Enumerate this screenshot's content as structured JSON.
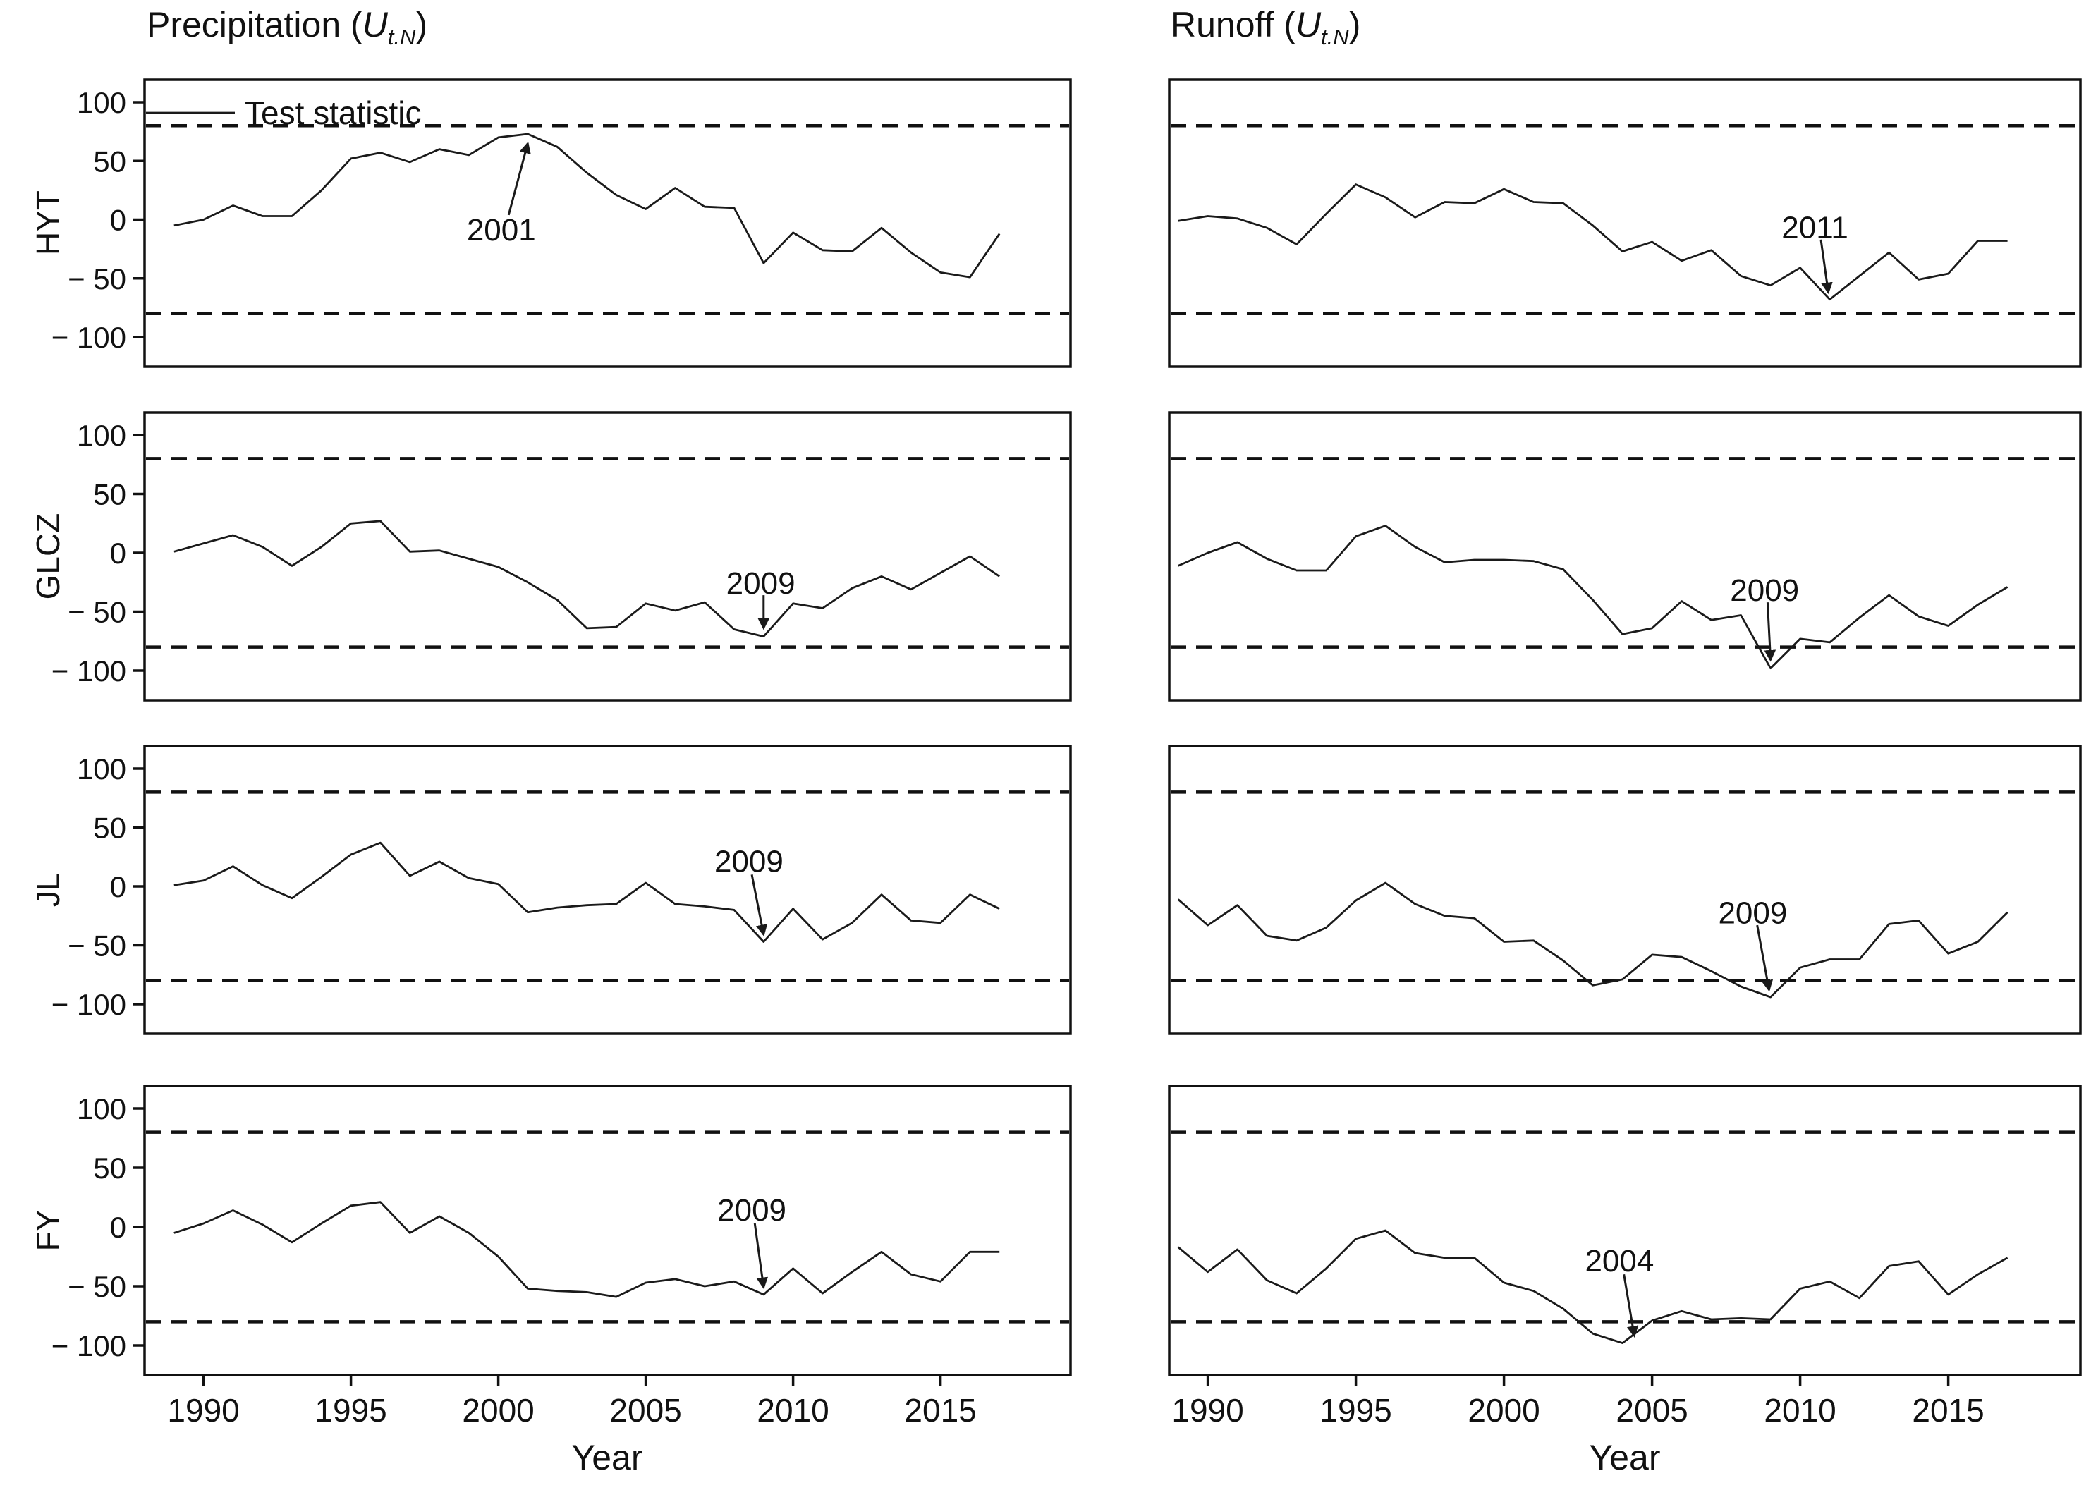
{
  "titles": {
    "left": {
      "prefix": "Precipitation (",
      "symbol": "U",
      "subscript": "t.N",
      "suffix": ")"
    },
    "right": {
      "prefix": "Runoff (",
      "symbol": "U",
      "subscript": "t.N",
      "suffix": ")"
    }
  },
  "row_labels": [
    "HYT",
    "GLCZ",
    "JL",
    "FY"
  ],
  "legend": {
    "label": "Test statistic",
    "panel_id": "hyt-precipitation"
  },
  "colors": {
    "line": "#1a1a1a",
    "bounds": "#111111",
    "frame": "#111111",
    "background": "#ffffff"
  },
  "chart_data": {
    "type": "line",
    "title_left": "Precipitation (U t.N)",
    "title_right": "Runoff (U t.N)",
    "xlabel": "Year",
    "ylabel_rows": [
      "HYT",
      "GLCZ",
      "JL",
      "FY"
    ],
    "x": [
      1989,
      1990,
      1991,
      1992,
      1993,
      1994,
      1995,
      1996,
      1997,
      1998,
      1999,
      2000,
      2001,
      2002,
      2003,
      2004,
      2005,
      2006,
      2007,
      2008,
      2009,
      2010,
      2011,
      2012,
      2013,
      2014,
      2015,
      2016,
      2017
    ],
    "xlim": [
      1988,
      2019.5
    ],
    "ylim": [
      -125,
      120
    ],
    "xticks": [
      1990,
      1995,
      2000,
      2005,
      2010,
      2015
    ],
    "xtick_labels": [
      "1990",
      "1995",
      "2000",
      "2005",
      "2010",
      "2015"
    ],
    "yticks": [
      100,
      50,
      0,
      -50,
      -100
    ],
    "ytick_labels": [
      "100",
      "50",
      "0",
      "− 50",
      "− 100"
    ],
    "significance_bounds": [
      80,
      -80
    ],
    "grid": false,
    "legend_entry": "Test statistic",
    "panels": [
      {
        "id": "hyt-precipitation",
        "station": "HYT",
        "variable": "Precipitation",
        "row": 0,
        "col": 0,
        "values": [
          -5,
          0,
          12,
          3,
          3,
          25,
          52,
          57,
          49,
          60,
          55,
          70,
          73,
          62,
          40,
          21,
          9,
          27,
          11,
          10,
          -37,
          -11,
          -26,
          -27,
          -7,
          -28,
          -45,
          -49,
          -12
        ],
        "annotation": {
          "text": "2001",
          "label_at": [
            2000.1,
            -8
          ],
          "arrow_from": [
            2000.35,
            4
          ],
          "arrow_to": [
            2001,
            65
          ]
        }
      },
      {
        "id": "hyt-runoff",
        "station": "HYT",
        "variable": "Runoff",
        "row": 0,
        "col": 1,
        "values": [
          -1,
          3,
          1,
          -7,
          -21,
          5,
          30,
          19,
          2,
          15,
          14,
          26,
          15,
          14,
          -5,
          -27,
          -19,
          -35,
          -26,
          -48,
          -56,
          -41,
          -68,
          -48,
          -28,
          -51,
          -46,
          -18,
          -18
        ],
        "annotation": {
          "text": "2011",
          "label_at": [
            2010.5,
            -6
          ],
          "arrow_from": [
            2010.7,
            -17
          ],
          "arrow_to": [
            2010.95,
            -62
          ]
        }
      },
      {
        "id": "glcz-precipitation",
        "station": "GLCZ",
        "variable": "Precipitation",
        "row": 1,
        "col": 0,
        "values": [
          1,
          8,
          15,
          5,
          -11,
          5,
          25,
          27,
          1,
          2,
          -5,
          -12,
          -25,
          -40,
          -64,
          -63,
          -43,
          -49,
          -42,
          -65,
          -71,
          -43,
          -47,
          -30,
          -20,
          -31,
          -17,
          -3,
          -20
        ],
        "annotation": {
          "text": "2009",
          "label_at": [
            2008.9,
            -25
          ],
          "arrow_from": [
            2009.0,
            -36
          ],
          "arrow_to": [
            2009.0,
            -64
          ]
        }
      },
      {
        "id": "glcz-runoff",
        "station": "GLCZ",
        "variable": "Runoff",
        "row": 1,
        "col": 1,
        "values": [
          -11,
          0,
          9,
          -5,
          -15,
          -15,
          14,
          23,
          5,
          -8,
          -6,
          -6,
          -7,
          -14,
          -40,
          -69,
          -64,
          -41,
          -57,
          -53,
          -98,
          -73,
          -76,
          -55,
          -36,
          -54,
          -62,
          -44,
          -29
        ],
        "annotation": {
          "text": "2009",
          "label_at": [
            2008.8,
            -31
          ],
          "arrow_from": [
            2008.9,
            -42
          ],
          "arrow_to": [
            2009,
            -91
          ]
        }
      },
      {
        "id": "jl-precipitation",
        "station": "JL",
        "variable": "Precipitation",
        "row": 2,
        "col": 0,
        "values": [
          1,
          5,
          17,
          1,
          -10,
          8,
          27,
          37,
          9,
          21,
          7,
          2,
          -22,
          -18,
          -16,
          -15,
          3,
          -15,
          -17,
          -20,
          -47,
          -19,
          -45,
          -31,
          -7,
          -29,
          -31,
          -7,
          -19
        ],
        "annotation": {
          "text": "2009",
          "label_at": [
            2008.5,
            22
          ],
          "arrow_from": [
            2008.6,
            10
          ],
          "arrow_to": [
            2009,
            -41
          ]
        }
      },
      {
        "id": "jl-runoff",
        "station": "JL",
        "variable": "Runoff",
        "row": 2,
        "col": 1,
        "values": [
          -11,
          -33,
          -16,
          -42,
          -46,
          -35,
          -12,
          3,
          -15,
          -25,
          -27,
          -47,
          -46,
          -63,
          -84,
          -79,
          -58,
          -60,
          -72,
          -85,
          -94,
          -69,
          -62,
          -62,
          -32,
          -29,
          -57,
          -47,
          -22
        ],
        "annotation": {
          "text": "2009",
          "label_at": [
            2008.4,
            -22
          ],
          "arrow_from": [
            2008.55,
            -33
          ],
          "arrow_to": [
            2008.95,
            -88
          ]
        }
      },
      {
        "id": "fy-precipitation",
        "station": "FY",
        "variable": "Precipitation",
        "row": 3,
        "col": 0,
        "values": [
          -5,
          3,
          14,
          2,
          -13,
          3,
          18,
          21,
          -5,
          9,
          -5,
          -25,
          -52,
          -54,
          -55,
          -59,
          -47,
          -44,
          -50,
          -46,
          -57,
          -35,
          -56,
          -38,
          -21,
          -40,
          -46,
          -21,
          -21
        ],
        "annotation": {
          "text": "2009",
          "label_at": [
            2008.6,
            15
          ],
          "arrow_from": [
            2008.7,
            3
          ],
          "arrow_to": [
            2009,
            -51
          ]
        }
      },
      {
        "id": "fy-runoff",
        "station": "FY",
        "variable": "Runoff",
        "row": 3,
        "col": 1,
        "values": [
          -17,
          -38,
          -19,
          -45,
          -56,
          -35,
          -10,
          -3,
          -22,
          -26,
          -26,
          -47,
          -54,
          -69,
          -90,
          -98,
          -79,
          -71,
          -78,
          -77,
          -78,
          -52,
          -46,
          -60,
          -33,
          -29,
          -57,
          -40,
          -26
        ],
        "annotation": {
          "text": "2004",
          "label_at": [
            2003.9,
            -28
          ],
          "arrow_from": [
            2004.05,
            -40
          ],
          "arrow_to": [
            2004.4,
            -92
          ]
        }
      }
    ]
  }
}
